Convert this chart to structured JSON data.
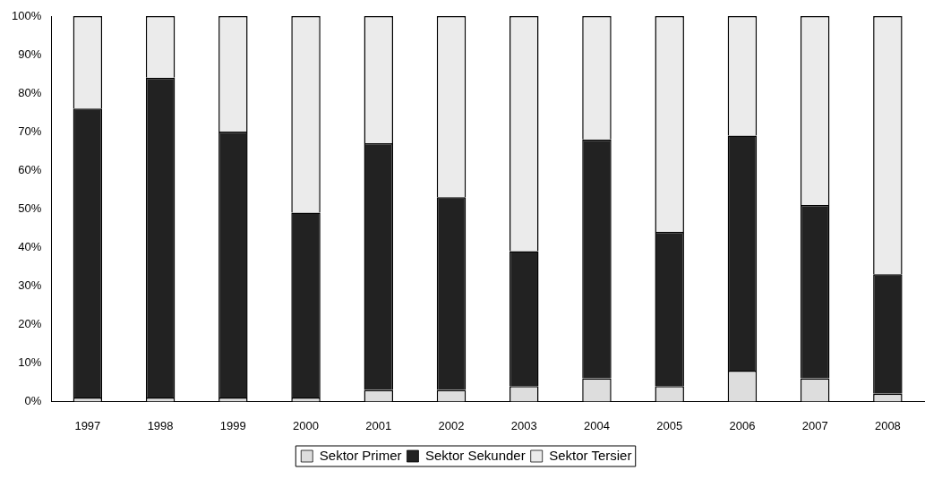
{
  "chart_data": {
    "type": "bar",
    "stacked": true,
    "categories": [
      "1997",
      "1998",
      "1999",
      "2000",
      "2001",
      "2002",
      "2003",
      "2004",
      "2005",
      "2006",
      "2007",
      "2008"
    ],
    "series": [
      {
        "name": "Sektor Primer",
        "color": "#dddddd",
        "values": [
          1,
          1,
          1,
          1,
          3,
          3,
          4,
          6,
          4,
          8,
          6,
          2
        ]
      },
      {
        "name": "Sektor Sekunder",
        "color": "#222222",
        "values": [
          75,
          83,
          69,
          48,
          64,
          50,
          35,
          62,
          40,
          61,
          45,
          31
        ]
      },
      {
        "name": "Sektor Tersier",
        "color": "#ebebeb",
        "values": [
          24,
          16,
          30,
          51,
          33,
          47,
          61,
          32,
          56,
          31,
          49,
          67
        ]
      }
    ],
    "ylim": [
      0,
      100
    ],
    "yticks": [
      {
        "value": 0,
        "label": "0%"
      },
      {
        "value": 10,
        "label": "10%"
      },
      {
        "value": 20,
        "label": "20%"
      },
      {
        "value": 30,
        "label": "30%"
      },
      {
        "value": 40,
        "label": "40%"
      },
      {
        "value": 50,
        "label": "50%"
      },
      {
        "value": 60,
        "label": "60%"
      },
      {
        "value": 70,
        "label": "70%"
      },
      {
        "value": 80,
        "label": "80%"
      },
      {
        "value": 90,
        "label": "90%"
      },
      {
        "value": 100,
        "label": "100%"
      }
    ],
    "grid": false,
    "legend": "bottom"
  }
}
